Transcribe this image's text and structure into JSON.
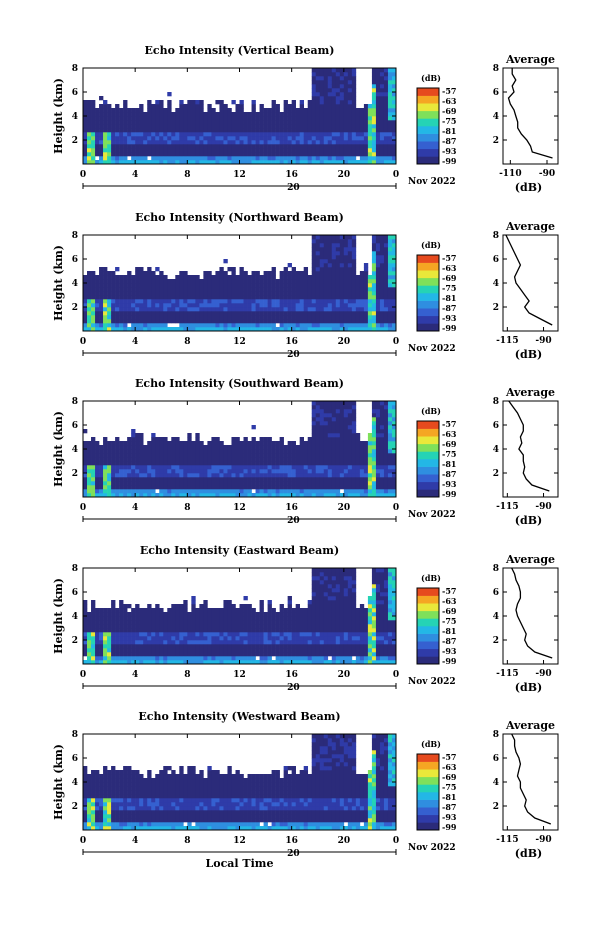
{
  "chart_data": [
    {
      "type": "heatmap",
      "title": "Echo Intensity (Vertical Beam)",
      "ylabel": "Height (km)",
      "y_ticks": [
        "2",
        "4",
        "6",
        "8"
      ],
      "x_ticks": [
        "0",
        "4",
        "8",
        "12",
        "16",
        "20",
        "0"
      ],
      "date_day": "20",
      "date_label": "Nov 2022",
      "colorbar_unit": "(dB)",
      "colorbar_ticks": [
        "-57",
        "-63",
        "-69",
        "-75",
        "-81",
        "-87",
        "-93",
        "-99"
      ],
      "profile": {
        "title": "Average",
        "x_ticks": [
          "-110",
          "-90"
        ],
        "xlabel": "(dB)",
        "y_ticks": [
          "2",
          "4",
          "6",
          "8"
        ],
        "x_range": [
          -114,
          -84
        ],
        "heights_km": [
          0.5,
          1.0,
          1.5,
          2.0,
          2.5,
          3.0,
          3.5,
          4.0,
          4.5,
          5.0,
          5.5,
          6.0,
          6.5,
          7.0,
          7.5,
          8.0
        ],
        "values_db": [
          -87,
          -98,
          -99,
          -101,
          -104,
          -106,
          -106,
          -107,
          -108,
          -110,
          -111,
          -108,
          -109,
          -107,
          -109,
          -109
        ]
      }
    },
    {
      "type": "heatmap",
      "title": "Echo Intensity (Northward Beam)",
      "ylabel": "Height (km)",
      "y_ticks": [
        "2",
        "4",
        "6",
        "8"
      ],
      "x_ticks": [
        "0",
        "4",
        "8",
        "12",
        "16",
        "20",
        "0"
      ],
      "date_day": "20",
      "date_label": "Nov 2022",
      "colorbar_unit": "(dB)",
      "colorbar_ticks": [
        "-57",
        "-63",
        "-69",
        "-75",
        "-81",
        "-87",
        "-93",
        "-99"
      ],
      "profile": {
        "title": "Average",
        "x_ticks": [
          "-115",
          "-90"
        ],
        "xlabel": "(dB)",
        "y_ticks": [
          "2",
          "4",
          "6",
          "8"
        ],
        "x_range": [
          -118,
          -80
        ],
        "heights_km": [
          0.5,
          1.0,
          1.5,
          2.0,
          2.5,
          3.0,
          3.5,
          4.0,
          4.5,
          5.0,
          5.5,
          6.0,
          6.5,
          7.0,
          7.5,
          8.0
        ],
        "values_db": [
          -84,
          -92,
          -100,
          -103,
          -100,
          -103,
          -106,
          -109,
          -110,
          -108,
          -106,
          -108,
          -110,
          -112,
          -114,
          -116
        ]
      }
    },
    {
      "type": "heatmap",
      "title": "Echo Intensity (Southward Beam)",
      "ylabel": "Height (km)",
      "y_ticks": [
        "2",
        "4",
        "6",
        "8"
      ],
      "x_ticks": [
        "0",
        "4",
        "8",
        "12",
        "16",
        "20",
        "0"
      ],
      "date_day": "20",
      "date_label": "Nov 2022",
      "colorbar_unit": "(dB)",
      "colorbar_ticks": [
        "-57",
        "-63",
        "-69",
        "-75",
        "-81",
        "-87",
        "-93",
        "-99"
      ],
      "profile": {
        "title": "Average",
        "x_ticks": [
          "-115",
          "-90"
        ],
        "xlabel": "(dB)",
        "y_ticks": [
          "2",
          "4",
          "6",
          "8"
        ],
        "x_range": [
          -118,
          -80
        ],
        "heights_km": [
          0.5,
          1.0,
          1.5,
          2.0,
          2.5,
          3.0,
          3.5,
          4.0,
          4.5,
          5.0,
          5.5,
          6.0,
          6.5,
          7.0,
          7.5,
          8.0
        ],
        "values_db": [
          -86,
          -98,
          -102,
          -104,
          -103,
          -104,
          -104,
          -107,
          -105,
          -106,
          -104,
          -104,
          -106,
          -108,
          -111,
          -114
        ]
      }
    },
    {
      "type": "heatmap",
      "title": "Echo Intensity (Eastward Beam)",
      "ylabel": "Height (km)",
      "y_ticks": [
        "2",
        "4",
        "6",
        "8"
      ],
      "x_ticks": [
        "0",
        "4",
        "8",
        "12",
        "16",
        "20",
        "0"
      ],
      "date_day": "20",
      "date_label": "Nov 2022",
      "colorbar_unit": "(dB)",
      "colorbar_ticks": [
        "-57",
        "-63",
        "-69",
        "-75",
        "-81",
        "-87",
        "-93",
        "-99"
      ],
      "profile": {
        "title": "Average",
        "x_ticks": [
          "-115",
          "-90"
        ],
        "xlabel": "(dB)",
        "y_ticks": [
          "2",
          "4",
          "6",
          "8"
        ],
        "x_range": [
          -118,
          -80
        ],
        "heights_km": [
          0.5,
          1.0,
          1.5,
          2.0,
          2.5,
          3.0,
          3.5,
          4.0,
          4.5,
          5.0,
          5.5,
          6.0,
          6.5,
          7.0,
          7.5,
          8.0
        ],
        "values_db": [
          -84,
          -96,
          -101,
          -103,
          -102,
          -104,
          -106,
          -108,
          -109,
          -108,
          -106,
          -106,
          -107,
          -109,
          -110,
          -112
        ]
      }
    },
    {
      "type": "heatmap",
      "title": "Echo Intensity (Westward Beam)",
      "ylabel": "Height (km)",
      "y_ticks": [
        "2",
        "4",
        "6",
        "8"
      ],
      "x_ticks": [
        "0",
        "4",
        "8",
        "12",
        "16",
        "20",
        "0"
      ],
      "date_day": "20",
      "date_label": "Nov 2022",
      "xlabel": "Local Time",
      "colorbar_unit": "(dB)",
      "colorbar_ticks": [
        "-57",
        "-63",
        "-69",
        "-75",
        "-81",
        "-87",
        "-93",
        "-99"
      ],
      "profile": {
        "title": "Average",
        "x_ticks": [
          "-115",
          "-90"
        ],
        "xlabel": "(dB)",
        "y_ticks": [
          "2",
          "4",
          "6",
          "8"
        ],
        "x_range": [
          -118,
          -80
        ],
        "heights_km": [
          0.5,
          1.0,
          1.5,
          2.0,
          2.5,
          3.0,
          3.5,
          4.0,
          4.5,
          5.0,
          5.5,
          6.0,
          6.5,
          7.0,
          7.5,
          8.0
        ],
        "values_db": [
          -85,
          -96,
          -101,
          -103,
          -102,
          -104,
          -106,
          -106,
          -108,
          -107,
          -106,
          -107,
          -109,
          -110,
          -110,
          -112
        ]
      }
    }
  ],
  "colors": {
    "scale": [
      "#2b2b7a",
      "#2f3ba8",
      "#3560d0",
      "#2f8ee0",
      "#23b7e6",
      "#25d3b5",
      "#7fe05a",
      "#e9e83a",
      "#f5a623",
      "#e64a1e"
    ]
  }
}
